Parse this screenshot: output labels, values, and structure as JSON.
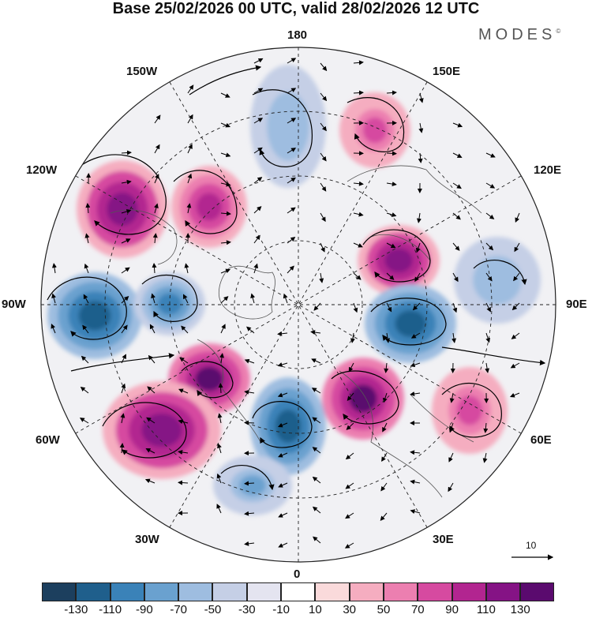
{
  "title": "Base 25/02/2026 00 UTC, valid 28/02/2026 12 UTC",
  "logo": {
    "text": "MODES",
    "mark": "©"
  },
  "longitude_labels": {
    "lon_180": "180",
    "lon_150w": "150W",
    "lon_150e": "150E",
    "lon_120w": "120W",
    "lon_120e": "120E",
    "lon_90w": "90W",
    "lon_90e": "90E",
    "lon_60w": "60W",
    "lon_60e": "60E",
    "lon_30w": "30W",
    "lon_30e": "30E",
    "lon_0": "0"
  },
  "reference_vector": {
    "value": "10"
  },
  "colorbar": {
    "colors": [
      "#1c3f5e",
      "#1f5f8c",
      "#3a82b8",
      "#6aa1cf",
      "#9ebde0",
      "#c5cfe6",
      "#e4e4f0",
      "#ffffff",
      "#fadadb",
      "#f5adc0",
      "#ec7fb0",
      "#d64aa0",
      "#b22590",
      "#851385",
      "#5a0a6e"
    ],
    "ticks": [
      "-130",
      "-110",
      "-90",
      "-70",
      "-50",
      "-30",
      "-10",
      "10",
      "30",
      "50",
      "70",
      "90",
      "110",
      "130"
    ]
  },
  "anomaly_centers": [
    {
      "name": "north-america-high-a",
      "sign": "positive",
      "value": 110
    },
    {
      "name": "north-america-high-b",
      "sign": "positive",
      "value": 80
    },
    {
      "name": "aleutian-low",
      "sign": "negative",
      "value": -60
    },
    {
      "name": "east-siberia-high",
      "sign": "positive",
      "value": 60
    },
    {
      "name": "hudson-low-a",
      "sign": "negative",
      "value": -120
    },
    {
      "name": "hudson-low-b",
      "sign": "negative",
      "value": -90
    },
    {
      "name": "arctic-high",
      "sign": "positive",
      "value": 110
    },
    {
      "name": "siberia-low",
      "sign": "negative",
      "value": -120
    },
    {
      "name": "central-asia-low",
      "sign": "negative",
      "value": -60
    },
    {
      "name": "greenland-high",
      "sign": "positive",
      "value": 120
    },
    {
      "name": "atlantic-high",
      "sign": "positive",
      "value": 110
    },
    {
      "name": "scandinavia-high",
      "sign": "positive",
      "value": 130
    },
    {
      "name": "west-europe-low",
      "sign": "negative",
      "value": -120
    },
    {
      "name": "atlantic-low",
      "sign": "negative",
      "value": -70
    },
    {
      "name": "ural-high",
      "sign": "positive",
      "value": 70
    }
  ]
}
